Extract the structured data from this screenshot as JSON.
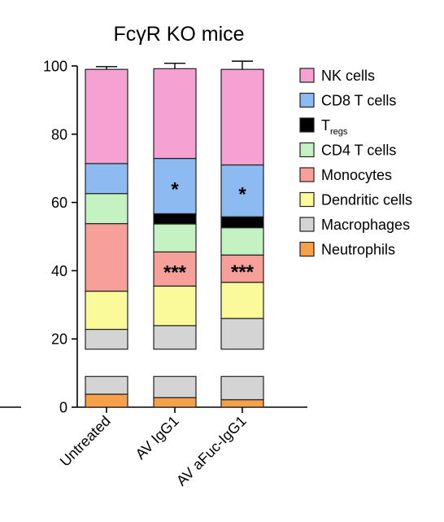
{
  "chart_data": {
    "type": "bar",
    "stacked": true,
    "title": "FcγR KO mice",
    "xlabel": "",
    "ylabel": "",
    "ylim": [
      0,
      100
    ],
    "yticks": [
      0,
      20,
      40,
      60,
      80,
      100
    ],
    "categories": [
      "Untreated",
      "AV IgG1",
      "AV aFuc-IgG1"
    ],
    "axis_break": [
      9,
      17
    ],
    "legend_position": "right",
    "series": [
      {
        "name": "Neutrophils",
        "color": "#f7a04a",
        "values": [
          3.8,
          2.8,
          2.2
        ],
        "errors": [
          0.7,
          0.9,
          0.3
        ]
      },
      {
        "name": "Macrophages",
        "color": "#d4d4d4",
        "values": [
          19.0,
          21.1,
          23.8
        ],
        "errors": [
          1.0,
          1.8,
          2.8
        ]
      },
      {
        "name": "Dendritic cells",
        "color": "#fbfa9a",
        "values": [
          11.2,
          11.6,
          10.6
        ],
        "errors": [
          1.3,
          1.8,
          1.2
        ]
      },
      {
        "name": "Monocytes",
        "color": "#f6a099",
        "values": [
          19.8,
          10.0,
          8.0
        ],
        "errors": [
          2.0,
          0.0,
          1.0
        ]
      },
      {
        "name": "CD4 T cells",
        "color": "#c5f2c3",
        "values": [
          8.8,
          8.2,
          8.0
        ],
        "errors": [
          1.2,
          0.0,
          0.0
        ]
      },
      {
        "name": "Tregs",
        "color": "#000000",
        "values": [
          0.0,
          3.0,
          3.2
        ],
        "errors": [
          0.0,
          1.0,
          1.2
        ]
      },
      {
        "name": "CD8 T cells",
        "color": "#8dbbf1",
        "values": [
          8.8,
          16.2,
          15.2
        ],
        "errors": [
          0.8,
          2.4,
          2.6
        ]
      },
      {
        "name": "NK cells",
        "color": "#f5a1d1",
        "values": [
          27.6,
          26.3,
          28.0
        ],
        "errors": [
          0.8,
          1.6,
          2.4
        ]
      }
    ],
    "annotations": [
      {
        "category": "AV IgG1",
        "series": "CD8 T cells",
        "text": "*"
      },
      {
        "category": "AV aFuc-IgG1",
        "series": "CD8 T cells",
        "text": "*"
      },
      {
        "category": "AV IgG1",
        "series": "Monocytes",
        "text": "***"
      },
      {
        "category": "AV aFuc-IgG1",
        "series": "Monocytes",
        "text": "***"
      }
    ],
    "legend": [
      {
        "main": "NK cells",
        "sub": "",
        "color": "#f5a1d1"
      },
      {
        "main": "CD8 T cells",
        "sub": "",
        "color": "#8dbbf1"
      },
      {
        "main": "T",
        "sub": "regs",
        "color": "#000000"
      },
      {
        "main": "CD4 T cells",
        "sub": "",
        "color": "#c5f2c3"
      },
      {
        "main": "Monocytes",
        "sub": "",
        "color": "#f6a099"
      },
      {
        "main": "Dendritic cells",
        "sub": "",
        "color": "#fbfa9a"
      },
      {
        "main": "Macrophages",
        "sub": "",
        "color": "#d4d4d4"
      },
      {
        "main": "Neutrophils",
        "sub": "",
        "color": "#f7a04a"
      }
    ]
  }
}
